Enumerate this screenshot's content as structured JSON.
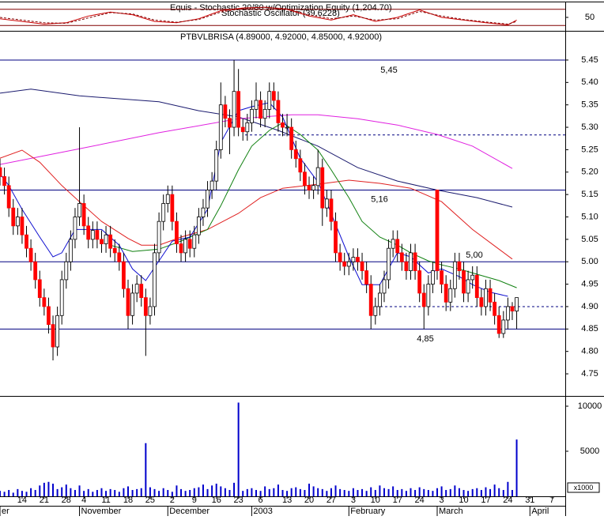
{
  "chart_data": [
    {
      "type": "line",
      "title": "Equis - Stochastic 20/80 w/Optimization Equity (1,204.70)",
      "subtitle": "Stochastic Oscillator (39.6228)",
      "xlim": [
        0,
        128
      ],
      "ylim": [
        0,
        100
      ],
      "yticks": [
        50
      ],
      "levels": [
        20,
        80
      ],
      "level_color": "#800000",
      "series": [
        {
          "color": "#cc0000",
          "dashed": false,
          "x": [
            0,
            5,
            10,
            15,
            20,
            25,
            30,
            35,
            40,
            45,
            50,
            55,
            60,
            65,
            70,
            75,
            80,
            85,
            90,
            95,
            100,
            105,
            110,
            115,
            117
          ],
          "values": [
            45,
            35,
            25,
            30,
            55,
            70,
            60,
            35,
            30,
            45,
            75,
            85,
            88,
            80,
            55,
            40,
            60,
            35,
            50,
            78,
            50,
            40,
            30,
            22,
            40
          ]
        },
        {
          "color": "#800000",
          "dashed": true,
          "x": [
            0,
            5,
            10,
            15,
            20,
            25,
            30,
            35,
            40,
            45,
            50,
            55,
            60,
            65,
            70,
            75,
            80,
            85,
            90,
            95,
            100,
            105,
            110,
            115,
            117
          ],
          "values": [
            50,
            40,
            30,
            28,
            48,
            68,
            63,
            40,
            32,
            42,
            70,
            83,
            87,
            82,
            60,
            45,
            55,
            40,
            45,
            72,
            55,
            42,
            33,
            25,
            35
          ]
        }
      ]
    },
    {
      "type": "candlestick",
      "title": "PTBVLBRISA (4.89000, 4.92000, 4.85000, 4.92000)",
      "xlim": [
        0,
        128
      ],
      "ylim": [
        4.7,
        5.5
      ],
      "yticks": [
        4.75,
        {
          "value": 4.8,
          "label": "4.80"
        },
        4.85,
        {
          "value": 4.9,
          "label": "4.90"
        },
        4.95,
        {
          "value": 5.0,
          "label": "5.00"
        },
        5.05,
        {
          "value": 5.1,
          "label": "5.10"
        },
        5.15,
        {
          "value": 5.2,
          "label": "5.20"
        },
        5.25,
        {
          "value": 5.3,
          "label": "5.30"
        },
        5.35,
        {
          "value": 5.4,
          "label": "5.40"
        },
        5.45
      ],
      "up_color": "#ffffff",
      "down_color": "#ff0000",
      "open": [
        5.21,
        5.19,
        5.17,
        5.12,
        5.08,
        5.1,
        5.06,
        5.03,
        5.0,
        4.96,
        4.92,
        4.9,
        4.86,
        4.81,
        4.88,
        4.96,
        5.0,
        5.05,
        5.1,
        5.13,
        5.08,
        5.05,
        5.07,
        5.05,
        5.04,
        5.06,
        5.03,
        5.02,
        5.0,
        4.94,
        4.88,
        4.93,
        4.95,
        4.92,
        4.88,
        4.9,
        5.02,
        5.09,
        5.13,
        5.15,
        5.09,
        5.04,
        5.02,
        5.05,
        5.03,
        5.06,
        5.1,
        5.12,
        5.16,
        5.18,
        5.25,
        5.35,
        5.32,
        5.3,
        5.38,
        5.3,
        5.29,
        5.31,
        5.34,
        5.36,
        5.32,
        5.34,
        5.38,
        5.36,
        5.31,
        5.3,
        5.3,
        5.25,
        5.23,
        5.2,
        5.17,
        5.16,
        5.17,
        5.21,
        5.12,
        5.14,
        5.09,
        5.02,
        5.0,
        4.99,
        5.0,
        5.01,
        5.0,
        4.98,
        4.95,
        4.88,
        4.9,
        4.93,
        4.96,
        5.03,
        5.05,
        5.02,
        5.0,
        4.98,
        5.02,
        4.98,
        4.93,
        4.9,
        4.95,
        5.16,
        4.98,
        4.95,
        4.91,
        4.94,
        5.0,
        4.98,
        4.93,
        4.96,
        4.97,
        4.92,
        4.9,
        4.94,
        4.91,
        4.88,
        4.84,
        4.87,
        4.9,
        4.89
      ],
      "high": [
        5.23,
        5.21,
        5.19,
        5.14,
        5.12,
        5.12,
        5.08,
        5.05,
        5.02,
        4.98,
        4.94,
        4.92,
        4.88,
        4.9,
        4.98,
        5.02,
        5.07,
        5.12,
        5.3,
        5.15,
        5.1,
        5.09,
        5.09,
        5.07,
        5.08,
        5.08,
        5.05,
        5.04,
        5.02,
        4.96,
        4.95,
        4.97,
        4.97,
        4.94,
        4.92,
        5.04,
        5.11,
        5.15,
        5.17,
        5.17,
        5.11,
        5.06,
        5.07,
        5.07,
        5.08,
        5.12,
        5.14,
        5.18,
        5.2,
        5.27,
        5.4,
        5.37,
        5.34,
        5.45,
        5.43,
        5.32,
        5.33,
        5.36,
        5.4,
        5.38,
        5.36,
        5.4,
        5.4,
        5.38,
        5.33,
        5.33,
        5.32,
        5.27,
        5.25,
        5.22,
        5.19,
        5.19,
        5.25,
        5.23,
        5.16,
        5.16,
        5.11,
        5.04,
        5.02,
        5.02,
        5.03,
        5.03,
        5.02,
        5.0,
        4.97,
        4.92,
        4.95,
        4.98,
        5.05,
        5.07,
        5.07,
        5.04,
        5.02,
        5.04,
        5.04,
        5.0,
        4.95,
        4.97,
        5.0,
        5.16,
        5.0,
        4.97,
        4.96,
        5.02,
        5.02,
        5.0,
        4.98,
        4.99,
        4.99,
        4.94,
        4.96,
        4.96,
        4.93,
        4.9,
        4.89,
        4.92,
        4.91,
        4.92
      ],
      "low": [
        5.17,
        5.15,
        5.1,
        5.06,
        5.06,
        5.04,
        5.01,
        4.98,
        4.94,
        4.9,
        4.88,
        4.84,
        4.78,
        4.79,
        4.86,
        4.94,
        4.98,
        5.03,
        5.08,
        5.06,
        5.03,
        5.03,
        5.03,
        5.02,
        5.02,
        5.01,
        5.0,
        4.98,
        4.92,
        4.85,
        4.86,
        4.91,
        4.9,
        4.79,
        4.86,
        4.88,
        5.0,
        5.07,
        5.11,
        5.07,
        5.02,
        5.0,
        5.0,
        5.01,
        5.01,
        5.04,
        5.08,
        5.1,
        5.14,
        5.16,
        5.23,
        5.3,
        5.24,
        5.28,
        5.28,
        5.27,
        5.27,
        5.29,
        5.32,
        5.3,
        5.3,
        5.32,
        5.34,
        5.29,
        5.28,
        5.28,
        5.23,
        5.21,
        5.18,
        5.15,
        5.14,
        5.14,
        5.15,
        5.08,
        5.1,
        5.07,
        5.0,
        4.98,
        4.97,
        4.97,
        4.98,
        4.98,
        4.96,
        4.93,
        4.85,
        4.86,
        4.88,
        4.91,
        4.94,
        5.01,
        5.0,
        4.98,
        4.96,
        4.96,
        4.96,
        4.91,
        4.85,
        4.88,
        4.93,
        4.96,
        4.93,
        4.89,
        4.89,
        4.92,
        4.96,
        4.91,
        4.91,
        4.94,
        4.9,
        4.88,
        4.88,
        4.89,
        4.86,
        4.83,
        4.83,
        4.85,
        4.87,
        4.85
      ],
      "close": [
        5.19,
        5.17,
        5.12,
        5.08,
        5.1,
        5.06,
        5.03,
        5.0,
        4.96,
        4.92,
        4.9,
        4.86,
        4.81,
        4.88,
        4.96,
        5.0,
        5.05,
        5.1,
        5.13,
        5.08,
        5.05,
        5.07,
        5.05,
        5.04,
        5.06,
        5.03,
        5.02,
        5.0,
        4.94,
        4.88,
        4.93,
        4.95,
        4.92,
        4.88,
        4.9,
        5.02,
        5.09,
        5.13,
        5.15,
        5.09,
        5.04,
        5.02,
        5.05,
        5.03,
        5.06,
        5.1,
        5.12,
        5.16,
        5.18,
        5.25,
        5.35,
        5.32,
        5.3,
        5.38,
        5.3,
        5.29,
        5.31,
        5.34,
        5.36,
        5.32,
        5.34,
        5.38,
        5.36,
        5.31,
        5.3,
        5.3,
        5.25,
        5.23,
        5.2,
        5.17,
        5.16,
        5.17,
        5.21,
        5.12,
        5.14,
        5.09,
        5.02,
        5.0,
        4.99,
        5.0,
        5.01,
        5.0,
        4.98,
        4.95,
        4.88,
        4.9,
        4.93,
        4.96,
        5.03,
        5.05,
        5.02,
        5.0,
        4.98,
        5.02,
        4.98,
        4.93,
        4.9,
        4.95,
        4.98,
        4.98,
        4.95,
        4.91,
        4.94,
        5.0,
        4.98,
        4.93,
        4.96,
        4.97,
        4.92,
        4.9,
        4.94,
        4.91,
        4.88,
        4.84,
        4.87,
        4.9,
        4.89,
        4.92
      ],
      "series": [
        {
          "color": "#1a1a6e",
          "x": [
            0,
            7,
            18,
            36,
            45,
            54,
            63,
            72,
            81,
            90,
            99,
            108,
            116
          ],
          "values": [
            5.376,
            5.385,
            5.37,
            5.357,
            5.337,
            5.323,
            5.293,
            5.258,
            5.21,
            5.18,
            5.16,
            5.143,
            5.122
          ]
        },
        {
          "color": "#e020e0",
          "x": [
            0,
            18,
            36,
            54,
            66,
            72,
            81,
            90,
            99,
            107,
            116
          ],
          "values": [
            5.217,
            5.252,
            5.288,
            5.319,
            5.328,
            5.328,
            5.319,
            5.305,
            5.284,
            5.258,
            5.208
          ]
        },
        {
          "color": "#e02020",
          "x": [
            0,
            5,
            9,
            14,
            18,
            23,
            29,
            32,
            36,
            41,
            47,
            54,
            59,
            64,
            72,
            79,
            86,
            93,
            100,
            107,
            113,
            116
          ],
          "values": [
            5.231,
            5.249,
            5.222,
            5.17,
            5.134,
            5.09,
            5.052,
            5.037,
            5.037,
            5.055,
            5.072,
            5.108,
            5.143,
            5.164,
            5.173,
            5.182,
            5.175,
            5.164,
            5.134,
            5.072,
            5.028,
            5.006
          ]
        },
        {
          "color": "#108010",
          "x": [
            25,
            30,
            36,
            41,
            47,
            50,
            54,
            57,
            61,
            64,
            68,
            72,
            75,
            79,
            82,
            86,
            90,
            93,
            97,
            100,
            104,
            107,
            113,
            117
          ],
          "values": [
            5.037,
            5.023,
            5.028,
            5.046,
            5.072,
            5.125,
            5.205,
            5.258,
            5.293,
            5.31,
            5.284,
            5.249,
            5.205,
            5.143,
            5.09,
            5.055,
            5.037,
            5.02,
            5.002,
            4.993,
            4.984,
            4.975,
            4.958,
            4.942
          ]
        },
        {
          "color": "#1010d0",
          "x": [
            0,
            2,
            5,
            9,
            12,
            14,
            17,
            20,
            23,
            27,
            30,
            33,
            36,
            39,
            43,
            47,
            50,
            54,
            57,
            61,
            64,
            68,
            72,
            75,
            79,
            82,
            86,
            90,
            93,
            97,
            100,
            104,
            107,
            111,
            115
          ],
          "values": [
            5.196,
            5.17,
            5.117,
            5.055,
            5.011,
            5.02,
            5.072,
            5.072,
            5.072,
            5.037,
            4.984,
            4.958,
            5.002,
            5.046,
            5.055,
            5.117,
            5.266,
            5.337,
            5.346,
            5.355,
            5.323,
            5.231,
            5.178,
            5.108,
            5.011,
            4.949,
            4.949,
            5.02,
            5.011,
            4.975,
            4.984,
            4.967,
            4.949,
            4.932,
            4.923
          ]
        }
      ],
      "hline_color": "#000080",
      "hlines": [
        {
          "value": 5.45,
          "label": "5,45"
        },
        {
          "value": 5.16,
          "label": "5,16"
        },
        {
          "value": 5.0,
          "label": "5,00"
        },
        {
          "value": 4.85,
          "label": "4,85"
        },
        {
          "value": 5.283,
          "style": "dashed"
        },
        {
          "value": 4.9,
          "style": "dashed"
        }
      ]
    },
    {
      "type": "bar",
      "xlim": [
        0,
        128
      ],
      "ylim": [
        0,
        11000
      ],
      "yticks": [
        5000,
        10000
      ],
      "unit_label": "x1000",
      "color": "#0000cc",
      "values": [
        600,
        500,
        700,
        400,
        800,
        600,
        500,
        900,
        700,
        1200,
        1500,
        1600,
        1400,
        800,
        1000,
        1300,
        900,
        700,
        1200,
        600,
        800,
        500,
        700,
        900,
        600,
        800,
        700,
        500,
        900,
        1100,
        700,
        800,
        900,
        5900,
        1000,
        800,
        600,
        900,
        700,
        500,
        1200,
        800,
        600,
        700,
        900,
        1000,
        1300,
        800,
        1200,
        1400,
        1100,
        900,
        700,
        1500,
        10400,
        600,
        800,
        900,
        700,
        600,
        1100,
        800,
        900,
        1300,
        700,
        600,
        900,
        1000,
        800,
        700,
        1400,
        1100,
        900,
        800,
        600,
        900,
        1200,
        800,
        700,
        600,
        900,
        700,
        800,
        600,
        1000,
        700,
        1200,
        900,
        800,
        1100,
        700,
        800,
        600,
        900,
        700,
        1000,
        800,
        700,
        600,
        900,
        1100,
        700,
        800,
        1200,
        900,
        700,
        600,
        800,
        900,
        700,
        1000,
        800,
        1300,
        900,
        700,
        1600,
        700,
        6300
      ],
      "xticks": [
        {
          "value": 5,
          "label": "14"
        },
        {
          "value": 10,
          "label": "21"
        },
        {
          "value": 15,
          "label": "28"
        },
        {
          "value": 19,
          "label": "4"
        },
        {
          "value": 24,
          "label": "11"
        },
        {
          "value": 29,
          "label": "18"
        },
        {
          "value": 34,
          "label": "25"
        },
        {
          "value": 39,
          "label": "2"
        },
        {
          "value": 44,
          "label": "9"
        },
        {
          "value": 49,
          "label": "16"
        },
        {
          "value": 54,
          "label": "23"
        },
        {
          "value": 59,
          "label": "6"
        },
        {
          "value": 65,
          "label": "13"
        },
        {
          "value": 70,
          "label": "20"
        },
        {
          "value": 75,
          "label": "27"
        },
        {
          "value": 80,
          "label": "3"
        },
        {
          "value": 85,
          "label": "10"
        },
        {
          "value": 90,
          "label": "17"
        },
        {
          "value": 95,
          "label": "24"
        },
        {
          "value": 100,
          "label": "3"
        },
        {
          "value": 105,
          "label": "10"
        },
        {
          "value": 110,
          "label": "17"
        },
        {
          "value": 115,
          "label": "24"
        },
        {
          "value": 120,
          "label": "31"
        },
        {
          "value": 125,
          "label": "7"
        }
      ],
      "month_ticks": [
        {
          "value": 0,
          "label": "er"
        },
        {
          "value": 18,
          "label": "November"
        },
        {
          "value": 38,
          "label": "December"
        },
        {
          "value": 57,
          "label": "2003"
        },
        {
          "value": 79,
          "label": "February"
        },
        {
          "value": 99,
          "label": "March"
        },
        {
          "value": 120,
          "label": "April"
        }
      ]
    }
  ]
}
